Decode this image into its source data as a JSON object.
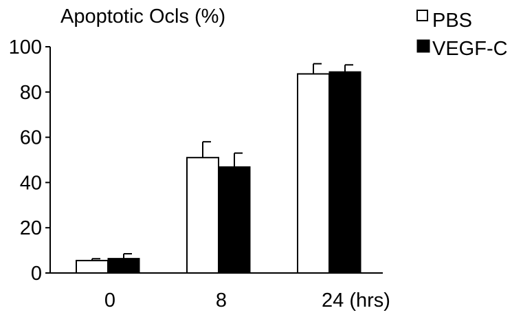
{
  "chart_data": {
    "type": "bar",
    "title": "Apoptotic Ocls (%)",
    "xlabel": "",
    "ylabel": "",
    "categories": [
      "0",
      "8",
      "24 (hrs)"
    ],
    "ylim": [
      0,
      100
    ],
    "yticks": [
      0,
      20,
      40,
      60,
      80,
      100
    ],
    "grid": false,
    "legend_position": "top-right",
    "series": [
      {
        "name": "PBS",
        "fill": "#ffffff",
        "values": [
          5.5,
          51,
          88
        ],
        "error": [
          0.8,
          7,
          4.5
        ]
      },
      {
        "name": "VEGF-C",
        "fill": "#000000",
        "values": [
          6.5,
          47,
          89
        ],
        "error": [
          2,
          6,
          3
        ]
      }
    ]
  }
}
